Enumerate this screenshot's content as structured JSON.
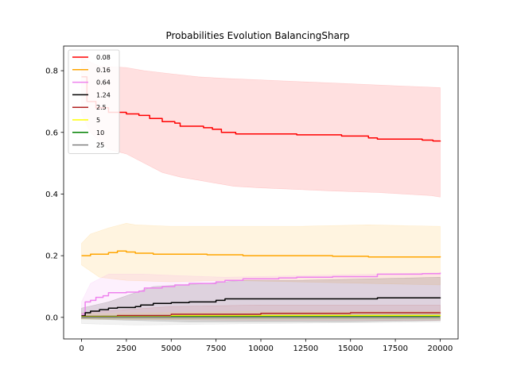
{
  "chart_data": {
    "type": "line",
    "title": "Probabilities Evolution BalancingSharp",
    "xlabel": "",
    "ylabel": "",
    "xlim": [
      -1000,
      21000
    ],
    "ylim": [
      -0.07,
      0.88
    ],
    "x_ticks": [
      0,
      2500,
      5000,
      7500,
      10000,
      12500,
      15000,
      17500,
      20000
    ],
    "x_tick_labels": [
      "0",
      "2500",
      "5000",
      "7500",
      "10000",
      "12500",
      "15000",
      "17500",
      "20000"
    ],
    "y_ticks": [
      0.0,
      0.2,
      0.4,
      0.6,
      0.8
    ],
    "y_tick_labels": [
      "0.0",
      "0.2",
      "0.4",
      "0.6",
      "0.8"
    ],
    "grid": false,
    "legend_position": "top-left",
    "series": [
      {
        "name": "0.08",
        "color": "#ff0000",
        "band_opacity": 0.12,
        "points": [
          [
            0,
            0.78
          ],
          [
            300,
            0.7
          ],
          [
            800,
            0.68
          ],
          [
            1500,
            0.665
          ],
          [
            2500,
            0.66
          ],
          [
            3200,
            0.655
          ],
          [
            3800,
            0.645
          ],
          [
            4500,
            0.635
          ],
          [
            5200,
            0.63
          ],
          [
            5500,
            0.62
          ],
          [
            6800,
            0.615
          ],
          [
            7300,
            0.61
          ],
          [
            7800,
            0.6
          ],
          [
            8600,
            0.595
          ],
          [
            12000,
            0.592
          ],
          [
            14500,
            0.588
          ],
          [
            16000,
            0.582
          ],
          [
            16500,
            0.578
          ],
          [
            19000,
            0.575
          ],
          [
            19600,
            0.572
          ],
          [
            20000,
            0.57
          ]
        ],
        "upper": [
          [
            0,
            0.84
          ],
          [
            1000,
            0.815
          ],
          [
            2500,
            0.81
          ],
          [
            3500,
            0.8
          ],
          [
            5000,
            0.79
          ],
          [
            6500,
            0.78
          ],
          [
            8000,
            0.775
          ],
          [
            10000,
            0.77
          ],
          [
            12000,
            0.765
          ],
          [
            14000,
            0.76
          ],
          [
            16000,
            0.755
          ],
          [
            18000,
            0.75
          ],
          [
            20000,
            0.745
          ]
        ],
        "lower": [
          [
            0,
            0.66
          ],
          [
            500,
            0.6
          ],
          [
            1500,
            0.545
          ],
          [
            2500,
            0.53
          ],
          [
            3500,
            0.5
          ],
          [
            4500,
            0.47
          ],
          [
            5500,
            0.455
          ],
          [
            7000,
            0.44
          ],
          [
            8500,
            0.425
          ],
          [
            10000,
            0.42
          ],
          [
            12000,
            0.415
          ],
          [
            14000,
            0.41
          ],
          [
            16500,
            0.405
          ],
          [
            19500,
            0.395
          ],
          [
            20000,
            0.39
          ]
        ]
      },
      {
        "name": "0.16",
        "color": "#ffa500",
        "band_opacity": 0.12,
        "points": [
          [
            0,
            0.2
          ],
          [
            500,
            0.205
          ],
          [
            1500,
            0.21
          ],
          [
            2000,
            0.215
          ],
          [
            2500,
            0.212
          ],
          [
            3000,
            0.208
          ],
          [
            4000,
            0.205
          ],
          [
            5000,
            0.205
          ],
          [
            7000,
            0.203
          ],
          [
            9000,
            0.2
          ],
          [
            12000,
            0.2
          ],
          [
            14000,
            0.198
          ],
          [
            16000,
            0.196
          ],
          [
            18000,
            0.196
          ],
          [
            20000,
            0.198
          ]
        ],
        "upper": [
          [
            0,
            0.24
          ],
          [
            500,
            0.27
          ],
          [
            1500,
            0.29
          ],
          [
            2500,
            0.305
          ],
          [
            3000,
            0.3
          ],
          [
            5000,
            0.295
          ],
          [
            8000,
            0.295
          ],
          [
            12000,
            0.295
          ],
          [
            16000,
            0.3
          ],
          [
            20000,
            0.295
          ]
        ],
        "lower": [
          [
            0,
            0.17
          ],
          [
            1000,
            0.13
          ],
          [
            2500,
            0.12
          ],
          [
            5000,
            0.115
          ],
          [
            8000,
            0.12
          ],
          [
            12000,
            0.115
          ],
          [
            16000,
            0.11
          ],
          [
            20000,
            0.105
          ]
        ]
      },
      {
        "name": "0.64",
        "color": "#ee82ee",
        "band_opacity": 0.12,
        "points": [
          [
            0,
            0.01
          ],
          [
            200,
            0.05
          ],
          [
            500,
            0.055
          ],
          [
            800,
            0.065
          ],
          [
            1200,
            0.07
          ],
          [
            1500,
            0.08
          ],
          [
            2500,
            0.082
          ],
          [
            3200,
            0.085
          ],
          [
            3500,
            0.095
          ],
          [
            4500,
            0.1
          ],
          [
            5200,
            0.105
          ],
          [
            6000,
            0.11
          ],
          [
            7500,
            0.115
          ],
          [
            8000,
            0.12
          ],
          [
            9000,
            0.125
          ],
          [
            11000,
            0.128
          ],
          [
            12000,
            0.13
          ],
          [
            14000,
            0.132
          ],
          [
            16500,
            0.14
          ],
          [
            19000,
            0.142
          ],
          [
            20000,
            0.145
          ]
        ],
        "upper": [
          [
            0,
            0.05
          ],
          [
            500,
            0.11
          ],
          [
            1500,
            0.14
          ],
          [
            3500,
            0.14
          ],
          [
            5500,
            0.135
          ],
          [
            8000,
            0.13
          ],
          [
            12000,
            0.135
          ],
          [
            16000,
            0.14
          ],
          [
            20000,
            0.145
          ]
        ],
        "lower": [
          [
            0,
            0.0
          ],
          [
            1500,
            0.0
          ],
          [
            5000,
            0.0
          ],
          [
            10000,
            0.0
          ],
          [
            20000,
            0.0
          ]
        ]
      },
      {
        "name": "1.24",
        "color": "#000000",
        "band_opacity": 0.12,
        "points": [
          [
            0,
            0.005
          ],
          [
            200,
            0.015
          ],
          [
            500,
            0.02
          ],
          [
            1000,
            0.025
          ],
          [
            1500,
            0.03
          ],
          [
            2000,
            0.032
          ],
          [
            3000,
            0.035
          ],
          [
            3300,
            0.04
          ],
          [
            4000,
            0.045
          ],
          [
            5000,
            0.048
          ],
          [
            6000,
            0.05
          ],
          [
            7500,
            0.055
          ],
          [
            8000,
            0.06
          ],
          [
            12000,
            0.06
          ],
          [
            16500,
            0.063
          ],
          [
            20000,
            0.065
          ]
        ],
        "upper": [
          [
            0,
            0.03
          ],
          [
            1500,
            0.05
          ],
          [
            3000,
            0.08
          ],
          [
            4000,
            0.1
          ],
          [
            7000,
            0.11
          ],
          [
            9000,
            0.12
          ],
          [
            12000,
            0.12
          ],
          [
            16000,
            0.125
          ],
          [
            20000,
            0.13
          ]
        ],
        "lower": [
          [
            0,
            -0.005
          ],
          [
            3000,
            -0.01
          ],
          [
            6000,
            -0.015
          ],
          [
            10000,
            -0.015
          ],
          [
            15000,
            -0.015
          ],
          [
            20000,
            -0.01
          ]
        ]
      },
      {
        "name": "2.5",
        "color": "#b22222",
        "band_opacity": 0.08,
        "points": [
          [
            0,
            0.003
          ],
          [
            2000,
            0.006
          ],
          [
            5000,
            0.01
          ],
          [
            10000,
            0.013
          ],
          [
            15000,
            0.015
          ],
          [
            20000,
            0.016
          ]
        ],
        "upper": [
          [
            0,
            0.015
          ],
          [
            5000,
            0.035
          ],
          [
            10000,
            0.04
          ],
          [
            20000,
            0.04
          ]
        ],
        "lower": [
          [
            0,
            -0.005
          ],
          [
            10000,
            -0.01
          ],
          [
            20000,
            -0.01
          ]
        ]
      },
      {
        "name": "5",
        "color": "#ffff00",
        "band_opacity": 0.06,
        "points": [
          [
            0,
            0.002
          ],
          [
            5000,
            0.005
          ],
          [
            10000,
            0.006
          ],
          [
            20000,
            0.007
          ]
        ],
        "upper": [
          [
            0,
            0.01
          ],
          [
            10000,
            0.02
          ],
          [
            20000,
            0.02
          ]
        ],
        "lower": [
          [
            0,
            -0.005
          ],
          [
            20000,
            -0.005
          ]
        ]
      },
      {
        "name": "10",
        "color": "#008000",
        "band_opacity": 0.06,
        "points": [
          [
            0,
            0.001
          ],
          [
            5000,
            0.002
          ],
          [
            10000,
            0.002
          ],
          [
            20000,
            0.002
          ]
        ],
        "upper": [
          [
            0,
            0.006
          ],
          [
            20000,
            0.01
          ]
        ],
        "lower": [
          [
            0,
            -0.003
          ],
          [
            20000,
            -0.005
          ]
        ]
      },
      {
        "name": "25",
        "color": "#808080",
        "band_opacity": 0.1,
        "points": [
          [
            0,
            0.0
          ],
          [
            10000,
            0.0
          ],
          [
            20000,
            0.0
          ]
        ],
        "upper": [
          [
            0,
            0.004
          ],
          [
            20000,
            0.004
          ]
        ],
        "lower": [
          [
            0,
            -0.02
          ],
          [
            3000,
            -0.025
          ],
          [
            10000,
            -0.02
          ],
          [
            20000,
            -0.015
          ]
        ]
      }
    ]
  }
}
